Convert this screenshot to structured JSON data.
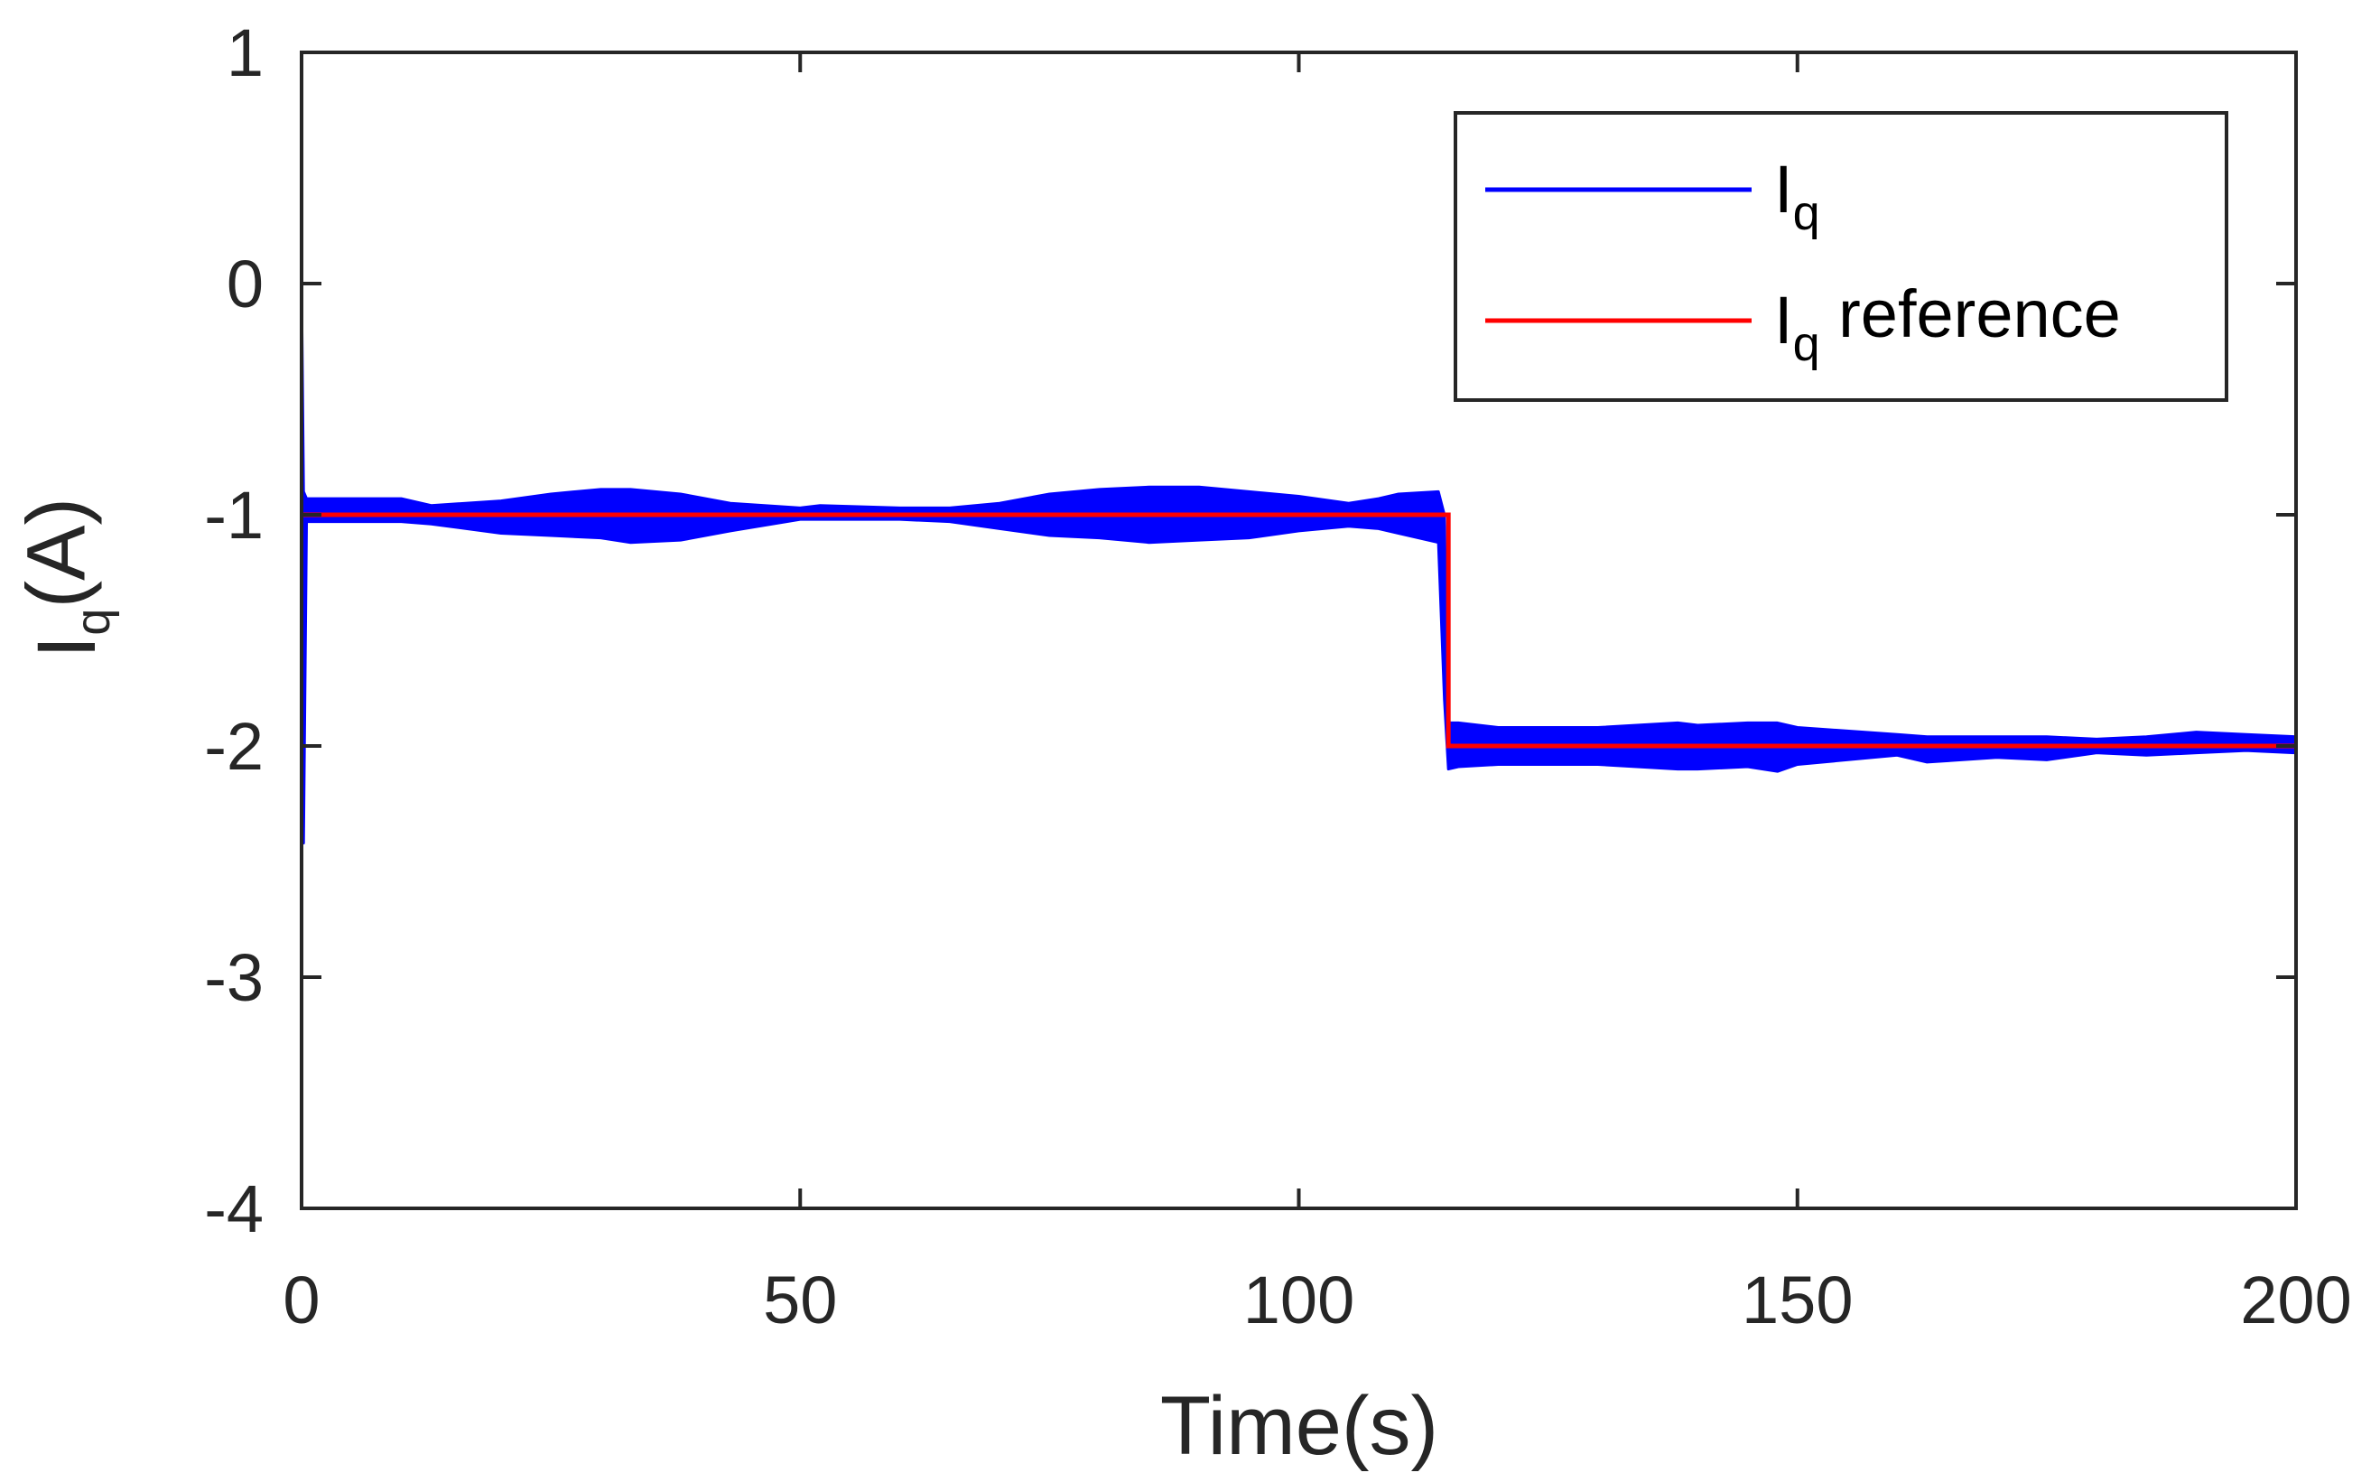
{
  "chart_data": {
    "type": "line",
    "xlabel": "Time(s)",
    "ylabel": {
      "main": "I",
      "sub": "q",
      "rest": "(A)"
    },
    "xlim": [
      0,
      200
    ],
    "ylim": [
      -4,
      1
    ],
    "xticks": [
      0,
      50,
      100,
      150,
      200
    ],
    "yticks": [
      1,
      0,
      -1,
      -2,
      -3,
      -4
    ],
    "xtick_labels": [
      "0",
      "50",
      "100",
      "150",
      "200"
    ],
    "ytick_labels": [
      "1",
      "0",
      "-1",
      "-2",
      "-3",
      "-4"
    ],
    "grid": false,
    "legend_placement": "top-right",
    "colors": {
      "measured": "#0000ff",
      "reference": "#ff0000",
      "axes": "#262626"
    },
    "series": [
      {
        "name": "I_q",
        "legend": {
          "main": "I",
          "sub": "q",
          "rest": ""
        },
        "style": "oscillating-band",
        "x": [
          0,
          0.2,
          0.5,
          2,
          5,
          10,
          13,
          20,
          25,
          30,
          33,
          38,
          43,
          50,
          52,
          60,
          65,
          70,
          75,
          80,
          85,
          90,
          95,
          100,
          105,
          108,
          110,
          114,
          114.6,
          115,
          116,
          120,
          130,
          138,
          140,
          145,
          148,
          150,
          160,
          163,
          170,
          175,
          180,
          185,
          190,
          195,
          200
        ],
        "upper": [
          0,
          -0.9,
          -0.93,
          -0.93,
          -0.93,
          -0.93,
          -0.96,
          -0.94,
          -0.91,
          -0.89,
          -0.89,
          -0.91,
          -0.95,
          -0.97,
          -0.96,
          -0.97,
          -0.97,
          -0.95,
          -0.91,
          -0.89,
          -0.88,
          -0.88,
          -0.9,
          -0.92,
          -0.95,
          -0.93,
          -0.91,
          -0.9,
          -1.0,
          -1.9,
          -1.9,
          -1.92,
          -1.92,
          -1.9,
          -1.91,
          -1.9,
          -1.9,
          -1.92,
          -1.95,
          -1.96,
          -1.96,
          -1.96,
          -1.97,
          -1.96,
          -1.94,
          -1.95,
          -1.96
        ],
        "lower": [
          0,
          -2.42,
          -1.03,
          -1.03,
          -1.03,
          -1.03,
          -1.04,
          -1.08,
          -1.09,
          -1.1,
          -1.12,
          -1.11,
          -1.07,
          -1.02,
          -1.02,
          -1.02,
          -1.03,
          -1.06,
          -1.09,
          -1.1,
          -1.12,
          -1.11,
          -1.1,
          -1.07,
          -1.05,
          -1.06,
          -1.08,
          -1.12,
          -1.8,
          -2.1,
          -2.09,
          -2.08,
          -2.08,
          -2.1,
          -2.1,
          -2.09,
          -2.11,
          -2.08,
          -2.04,
          -2.07,
          -2.05,
          -2.06,
          -2.03,
          -2.04,
          -2.03,
          -2.02,
          -2.03
        ]
      },
      {
        "name": "I_q reference",
        "legend": {
          "main": "I",
          "sub": "q",
          "rest": " reference"
        },
        "style": "line",
        "x": [
          0,
          115,
          115,
          200
        ],
        "y": [
          -1,
          -1,
          -2,
          -2
        ]
      }
    ]
  }
}
